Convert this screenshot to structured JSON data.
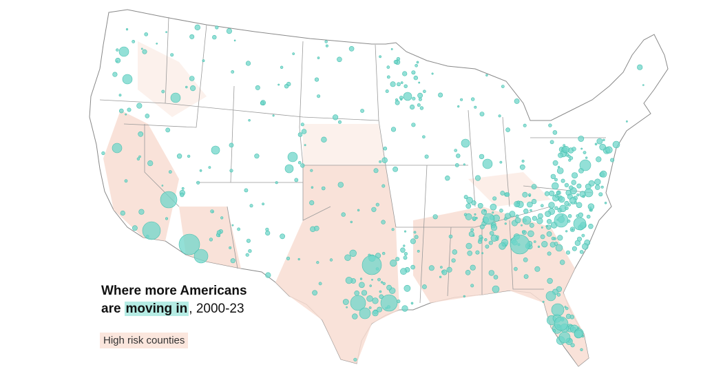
{
  "title": {
    "line1": "Where more Americans",
    "line2_start": "are",
    "highlight": "moving in",
    "line2_end": ", 2000-23"
  },
  "legend": {
    "label": "High risk counties"
  }
}
